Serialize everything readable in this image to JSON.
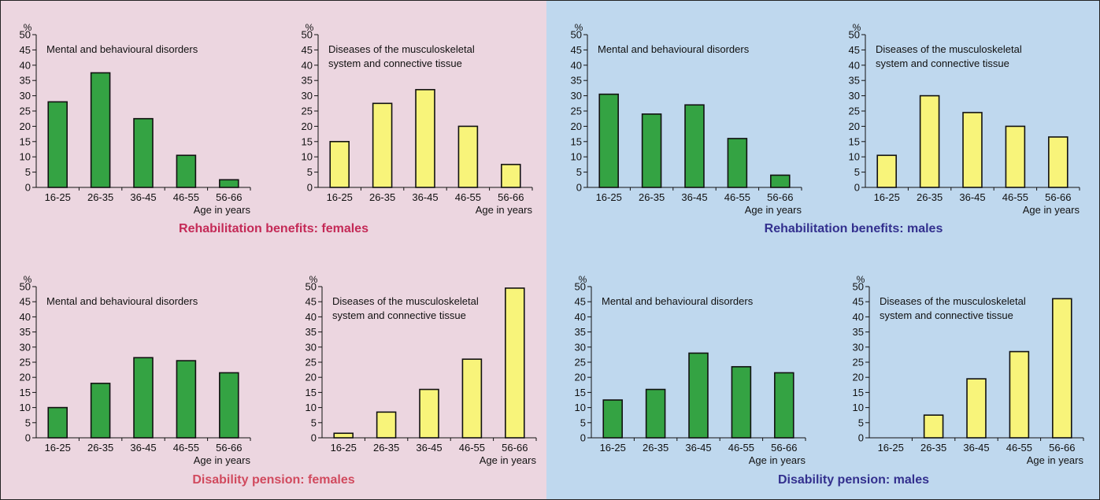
{
  "colors": {
    "female_panel_bg": "#ecd6e0",
    "male_panel_bg": "#bfd8ee",
    "mental_bar": "#34a343",
    "musculoskeletal_bar": "#f8f47a",
    "bar_outline": "#111111",
    "female_title": "#c42a57",
    "female_pension_title": "#d14a5e",
    "male_title": "#33308e"
  },
  "section_titles": {
    "rehab_females": "Rehabilitation benefits: females",
    "pension_females": "Disability pension: females",
    "rehab_males": "Rehabilitation benefits: males",
    "pension_males": "Disability pension: males"
  },
  "chart_data": [
    {
      "type": "bar",
      "group": "Rehabilitation benefits: females",
      "title": "Mental and behavioural disorders",
      "ylabel": "%",
      "xlabel": "Age in years",
      "categories": [
        "16-25",
        "26-35",
        "36-45",
        "46-55",
        "56-66"
      ],
      "values": [
        28,
        37.5,
        22.5,
        10.5,
        2.5
      ],
      "ylim": [
        0,
        50
      ],
      "yticks": [
        0,
        5,
        10,
        15,
        20,
        25,
        30,
        35,
        40,
        45,
        50
      ],
      "grid": false,
      "color": "#34a343"
    },
    {
      "type": "bar",
      "group": "Rehabilitation benefits: females",
      "title": "Diseases of the musculoskeletal\nsystem and connective tissue",
      "ylabel": "%",
      "xlabel": "Age in years",
      "categories": [
        "16-25",
        "26-35",
        "36-45",
        "46-55",
        "56-66"
      ],
      "values": [
        15,
        27.5,
        32,
        20,
        7.5
      ],
      "ylim": [
        0,
        50
      ],
      "yticks": [
        0,
        5,
        10,
        15,
        20,
        25,
        30,
        35,
        40,
        45,
        50
      ],
      "grid": false,
      "color": "#f8f47a"
    },
    {
      "type": "bar",
      "group": "Rehabilitation benefits: males",
      "title": "Mental and behavioural disorders",
      "ylabel": "%",
      "xlabel": "Age in years",
      "categories": [
        "16-25",
        "26-35",
        "36-45",
        "46-55",
        "56-66"
      ],
      "values": [
        30.5,
        24,
        27,
        16,
        4
      ],
      "ylim": [
        0,
        50
      ],
      "yticks": [
        0,
        5,
        10,
        15,
        20,
        25,
        30,
        35,
        40,
        45,
        50
      ],
      "grid": false,
      "color": "#34a343"
    },
    {
      "type": "bar",
      "group": "Rehabilitation benefits: males",
      "title": "Diseases of the musculoskeletal\nsystem and connective tissue",
      "ylabel": "%",
      "xlabel": "Age in years",
      "categories": [
        "16-25",
        "26-35",
        "36-45",
        "46-55",
        "56-66"
      ],
      "values": [
        10.5,
        30,
        24.5,
        20,
        16.5
      ],
      "ylim": [
        0,
        50
      ],
      "yticks": [
        0,
        5,
        10,
        15,
        20,
        25,
        30,
        35,
        40,
        45,
        50
      ],
      "grid": false,
      "color": "#f8f47a"
    },
    {
      "type": "bar",
      "group": "Disability pension: females",
      "title": "Mental and behavioural disorders",
      "ylabel": "%",
      "xlabel": "Age in years",
      "categories": [
        "16-25",
        "26-35",
        "36-45",
        "46-55",
        "56-66"
      ],
      "values": [
        10,
        18,
        26.5,
        25.5,
        21.5
      ],
      "ylim": [
        0,
        50
      ],
      "yticks": [
        0,
        5,
        10,
        15,
        20,
        25,
        30,
        35,
        40,
        45,
        50
      ],
      "grid": false,
      "color": "#34a343"
    },
    {
      "type": "bar",
      "group": "Disability pension: females",
      "title": "Diseases of the musculoskeletal\nsystem and connective tissue",
      "ylabel": "%",
      "xlabel": "Age in years",
      "categories": [
        "16-25",
        "26-35",
        "36-45",
        "46-55",
        "56-66"
      ],
      "values": [
        1.5,
        8.5,
        16,
        26,
        49.5
      ],
      "ylim": [
        0,
        50
      ],
      "yticks": [
        0,
        5,
        10,
        15,
        20,
        25,
        30,
        35,
        40,
        45,
        50
      ],
      "grid": false,
      "color": "#f8f47a"
    },
    {
      "type": "bar",
      "group": "Disability pension: males",
      "title": "Mental and behavioural disorders",
      "ylabel": "%",
      "xlabel": "Age in years",
      "categories": [
        "16-25",
        "26-35",
        "36-45",
        "46-55",
        "56-66"
      ],
      "values": [
        12.5,
        16,
        28,
        23.5,
        21.5
      ],
      "ylim": [
        0,
        50
      ],
      "yticks": [
        0,
        5,
        10,
        15,
        20,
        25,
        30,
        35,
        40,
        45,
        50
      ],
      "grid": false,
      "color": "#34a343"
    },
    {
      "type": "bar",
      "group": "Disability pension: males",
      "title": "Diseases of the musculoskeletal\nsystem and connective tissue",
      "ylabel": "%",
      "xlabel": "Age in years",
      "categories": [
        "16-25",
        "26-35",
        "36-45",
        "46-55",
        "56-66"
      ],
      "values": [
        0,
        7.5,
        19.5,
        28.5,
        46
      ],
      "ylim": [
        0,
        50
      ],
      "yticks": [
        0,
        5,
        10,
        15,
        20,
        25,
        30,
        35,
        40,
        45,
        50
      ],
      "grid": false,
      "color": "#f8f47a"
    }
  ]
}
